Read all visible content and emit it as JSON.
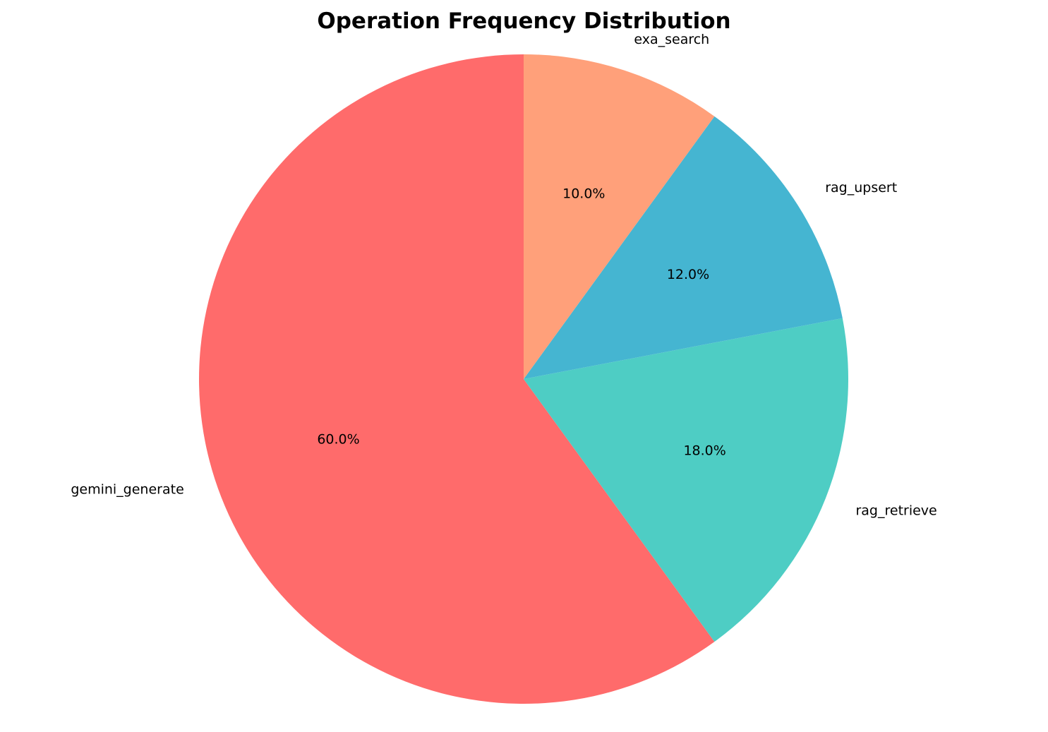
{
  "chart_data": {
    "type": "pie",
    "title": "Operation Frequency Distribution",
    "start_angle_deg": 90,
    "direction": "counterclockwise",
    "slices": [
      {
        "label": "gemini_generate",
        "value": 60.0,
        "pct_label": "60.0%",
        "color": "#FF6B6B"
      },
      {
        "label": "rag_retrieve",
        "value": 18.0,
        "pct_label": "18.0%",
        "color": "#4ECDC4"
      },
      {
        "label": "rag_upsert",
        "value": 12.0,
        "pct_label": "12.0%",
        "color": "#45B5D1"
      },
      {
        "label": "exa_search",
        "value": 10.0,
        "pct_label": "10.0%",
        "color": "#FFA07A"
      }
    ]
  }
}
